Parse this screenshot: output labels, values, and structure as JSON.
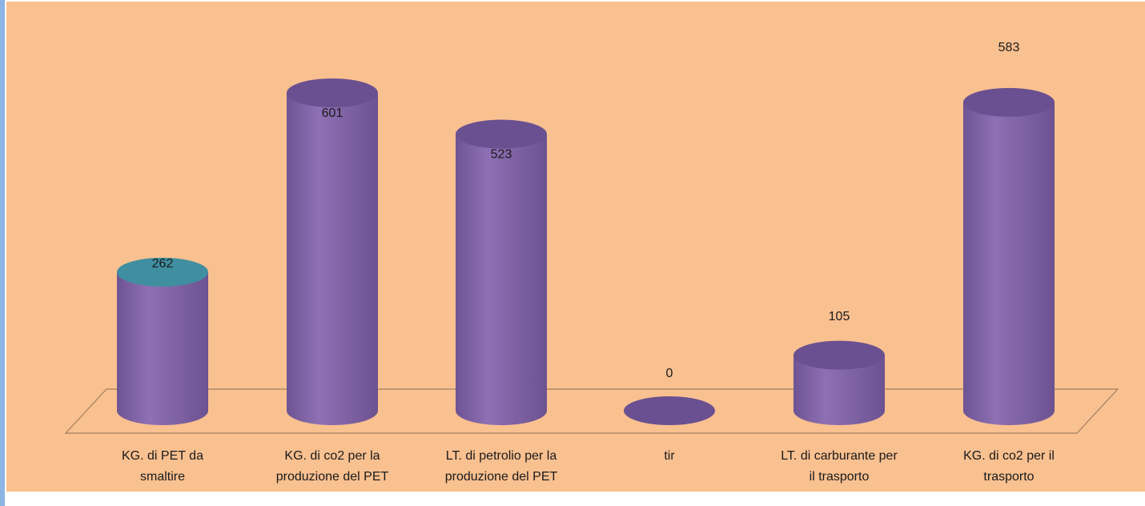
{
  "chart_data": {
    "type": "bar",
    "style": "3d-cylinder",
    "categories": [
      [
        "KG. di PET da",
        "smaltire"
      ],
      [
        "KG. di co2  per la",
        "produzione del PET"
      ],
      [
        "LT.  di petrolio per la",
        "produzione del PET"
      ],
      [
        "tir"
      ],
      [
        "LT. di carburante per",
        "il trasporto"
      ],
      [
        "KG. di co2 per il",
        "trasporto"
      ]
    ],
    "values": [
      262,
      601,
      523,
      0,
      105,
      583
    ],
    "value_labels": [
      "262",
      "601",
      "523",
      "0",
      "105",
      "583"
    ],
    "title": "",
    "xlabel": "",
    "ylabel": "",
    "ylim": [
      0,
      601
    ],
    "grid": false,
    "legend": "none"
  },
  "colors": {
    "plot_background": "#f9c090",
    "bar_body": "#8064a2",
    "bar_top": "#6a5090",
    "bar_highlight_top": "#3f8fa0",
    "floor_line": "#a08060",
    "left_border": "#8db4e2"
  }
}
